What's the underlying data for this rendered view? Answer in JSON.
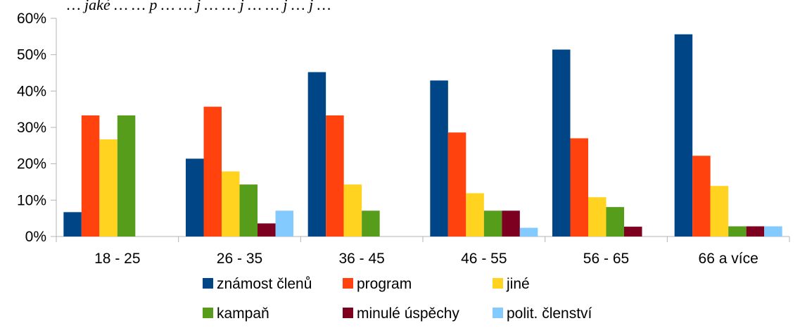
{
  "chart_data": {
    "type": "bar",
    "title": "… jaké …   … p …   … j …   … j …   … j … j …",
    "categories": [
      "18 - 25",
      "26 - 35",
      "36 - 45",
      "46 - 55",
      "56 - 65",
      "66 a více"
    ],
    "ylim": [
      0,
      60
    ],
    "y_ticks": [
      "0%",
      "10%",
      "20%",
      "30%",
      "40%",
      "50%",
      "60%"
    ],
    "grid": false,
    "legend_position": "bottom",
    "series": [
      {
        "name": "známost členů",
        "color": "#004586",
        "values": [
          6.7,
          21.4,
          45.2,
          42.9,
          51.4,
          55.6
        ]
      },
      {
        "name": "program",
        "color": "#ff420e",
        "values": [
          33.3,
          35.7,
          33.3,
          28.6,
          27.0,
          22.2
        ]
      },
      {
        "name": "jiné",
        "color": "#ffd320",
        "values": [
          26.7,
          17.9,
          14.3,
          11.9,
          10.8,
          13.9
        ]
      },
      {
        "name": "kampaň",
        "color": "#579d1c",
        "values": [
          33.3,
          14.3,
          7.1,
          7.1,
          8.1,
          2.8
        ]
      },
      {
        "name": "minulé úspěchy",
        "color": "#7e0021",
        "values": [
          0,
          3.6,
          0,
          7.1,
          2.7,
          2.8
        ]
      },
      {
        "name": "polit. členství",
        "color": "#83caff",
        "values": [
          0,
          7.1,
          0,
          2.4,
          0,
          2.8
        ]
      }
    ]
  }
}
